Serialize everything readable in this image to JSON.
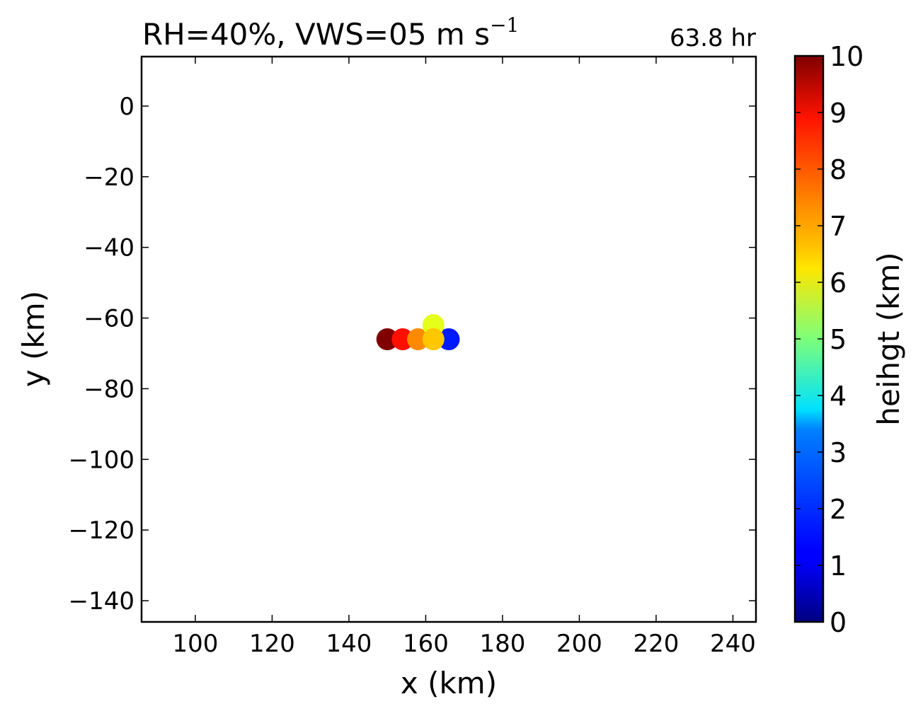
{
  "chart_data": {
    "type": "scatter",
    "title_text": "RH=40%, VWS=05 m s",
    "title_superscript": "−1",
    "time_label": "63.8 hr",
    "time_label_color": "#0000ff",
    "xlabel": "x (km)",
    "ylabel": "y (km)",
    "xlim": [
      86,
      246
    ],
    "ylim": [
      -146,
      14
    ],
    "xticks": [
      100,
      120,
      140,
      160,
      180,
      200,
      220,
      240
    ],
    "yticks": [
      0,
      -20,
      -40,
      -60,
      -80,
      -100,
      -120,
      -140
    ],
    "xtick_labels": [
      "100",
      "120",
      "140",
      "160",
      "180",
      "200",
      "220",
      "240"
    ],
    "ytick_labels": [
      "0",
      "−20",
      "−40",
      "−60",
      "−80",
      "−100",
      "−120",
      "−140"
    ],
    "colorbar": {
      "label": "heihgt (km)",
      "range": [
        0,
        10
      ],
      "colormap": "jet",
      "ticks": [
        0,
        1,
        2,
        3,
        4,
        5,
        6,
        7,
        8,
        9,
        10
      ],
      "tick_labels": [
        "0",
        "1",
        "2",
        "3",
        "4",
        "5",
        "6",
        "7",
        "8",
        "9",
        "10"
      ]
    },
    "grid": false,
    "points": [
      {
        "x": 166,
        "y": -66,
        "height": 1.5
      },
      {
        "x": 150,
        "y": -66,
        "height": 10
      },
      {
        "x": 154,
        "y": -66,
        "height": 8.6
      },
      {
        "x": 158,
        "y": -66,
        "height": 7.4
      },
      {
        "x": 162,
        "y": -62,
        "height": 6
      },
      {
        "x": 162,
        "y": -66,
        "height": 6.8
      }
    ]
  }
}
